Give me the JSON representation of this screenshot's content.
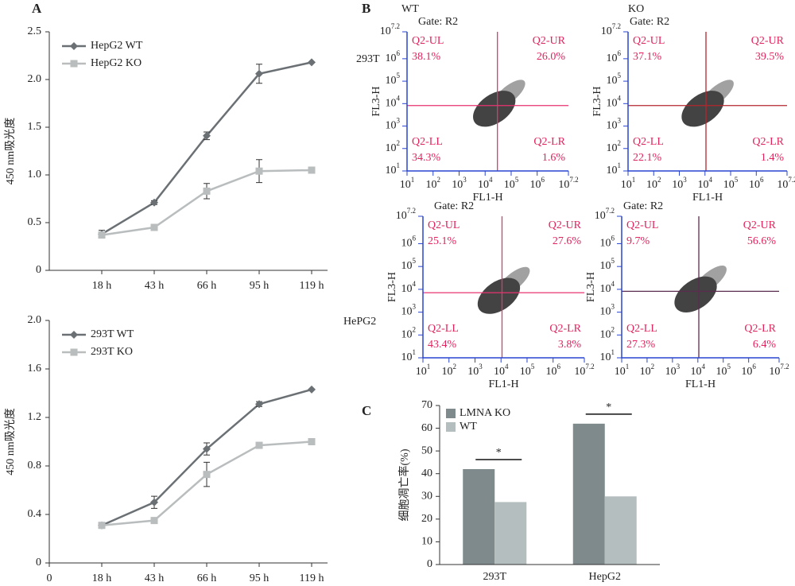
{
  "chart_data": [
    {
      "type": "line",
      "label": "A",
      "ylabel": "450 nm吸光度",
      "categories": [
        "18 h",
        "43 h",
        "66 h",
        "95 h",
        "119 h"
      ],
      "series": [
        {
          "name": "HepG2 WT",
          "color": "#6b7074",
          "marker": "diamond",
          "values": [
            0.38,
            0.71,
            1.41,
            2.06,
            2.18
          ],
          "errors": [
            0.04,
            0.02,
            0.04,
            0.1,
            0
          ]
        },
        {
          "name": "HepG2 KO",
          "color": "#b9bdbe",
          "marker": "square",
          "values": [
            0.37,
            0.45,
            0.83,
            1.04,
            1.05
          ],
          "errors": [
            0.02,
            0.01,
            0.08,
            0.12,
            0
          ]
        }
      ],
      "ylim": [
        0,
        2.5
      ],
      "yticks": [
        0,
        0.5,
        {
          "value": 1,
          "label": "1.0"
        },
        1.5,
        {
          "value": 2,
          "label": "2.0"
        },
        2.5
      ],
      "legend": "upper left"
    },
    {
      "type": "line",
      "ylabel": "450 nm吸光度",
      "categories": [
        "0",
        "18 h",
        "43 h",
        "66 h",
        "95 h",
        "119 h"
      ],
      "series": [
        {
          "name": "293T WT",
          "color": "#6b7074",
          "marker": "diamond",
          "values": [
            null,
            0.31,
            0.5,
            0.94,
            1.31,
            1.43
          ],
          "errors": [
            null,
            0.01,
            0.05,
            0.05,
            0.02,
            0
          ]
        },
        {
          "name": "293T KO",
          "color": "#b9bdbe",
          "marker": "square",
          "values": [
            null,
            0.31,
            0.35,
            0.73,
            0.97,
            1.0
          ],
          "errors": [
            null,
            0.01,
            0.01,
            0.1,
            0.02,
            0
          ]
        }
      ],
      "ylim": [
        0,
        2
      ],
      "yticks": [
        0,
        0.4,
        0.8,
        1.2,
        1.6,
        {
          "value": 2,
          "label": "2.0"
        }
      ],
      "legend": "upper left"
    },
    {
      "type": "flow",
      "label": "B",
      "gate": "Gate: R2",
      "xlabel": "FL1-H",
      "ylabel": "FL3-H",
      "scale": "log",
      "axis_color": "#2a45d0",
      "xlim": [
        10,
        15848932
      ],
      "ylim": [
        10,
        15848932
      ],
      "xticks": [
        {
          "value": 10,
          "label": "10^1"
        },
        {
          "value": 100,
          "label": "10^2"
        },
        {
          "value": 1000,
          "label": "10^3"
        },
        {
          "value": 10000,
          "label": "10^4"
        },
        {
          "value": 100000,
          "label": "10^5"
        },
        {
          "value": 1000000,
          "label": "10^6"
        },
        {
          "value": 15848932,
          "label": "10^7.2"
        }
      ],
      "yticks": [
        {
          "value": 10,
          "label": "10^1"
        },
        {
          "value": 100,
          "label": "10^2"
        },
        {
          "value": 1000,
          "label": "10^3"
        },
        {
          "value": 10000,
          "label": "10^4"
        },
        {
          "value": 100000,
          "label": "10^5"
        },
        {
          "value": 1000000,
          "label": "10^6"
        },
        {
          "value": 15848932,
          "label": "10^7.2"
        }
      ],
      "quadrants": [
        "Q2-UL",
        "Q2-UR",
        "Q2-LL",
        "Q2-LR"
      ],
      "panels": [
        {
          "title": "WT",
          "row_label": "293T",
          "color": "#e8336e",
          "values": [
            38.1,
            26.0,
            34.3,
            1.6
          ],
          "value_labels": [
            "38.1%",
            "26.0%",
            "34.3%",
            "1.6%"
          ]
        },
        {
          "title": "KO",
          "color": "#b3262e",
          "values": [
            37.1,
            39.5,
            22.1,
            1.4
          ],
          "value_labels": [
            "37.1%",
            "39.5%",
            "22.1%",
            "1.4%"
          ]
        },
        {
          "row_label": "HePG2",
          "color": "#e8336e",
          "values": [
            25.1,
            27.6,
            43.4,
            3.8
          ],
          "value_labels": [
            "25.1%",
            "27.6%",
            "43.4%",
            "3.8%"
          ]
        },
        {
          "color": "#5b2c4e",
          "values": [
            9.7,
            56.6,
            27.3,
            6.4
          ],
          "value_labels": [
            "9.7%",
            "56.6%",
            "27.3%",
            "6.4%"
          ]
        }
      ]
    },
    {
      "type": "bar",
      "label": "C",
      "ylabel": "细胞凋亡率(%)",
      "categories": [
        "293T",
        "HepG2"
      ],
      "series": [
        {
          "name": "LMNA KO",
          "color": "#7f8a8c",
          "values": [
            42,
            62
          ]
        },
        {
          "name": "WT",
          "color": "#b5bebe",
          "values": [
            27.5,
            30
          ]
        }
      ],
      "significance": [
        "*",
        "*"
      ],
      "ylim": [
        0,
        70
      ],
      "yticks": [
        0,
        10,
        20,
        30,
        40,
        50,
        60,
        70
      ],
      "legend": "upper left"
    }
  ]
}
